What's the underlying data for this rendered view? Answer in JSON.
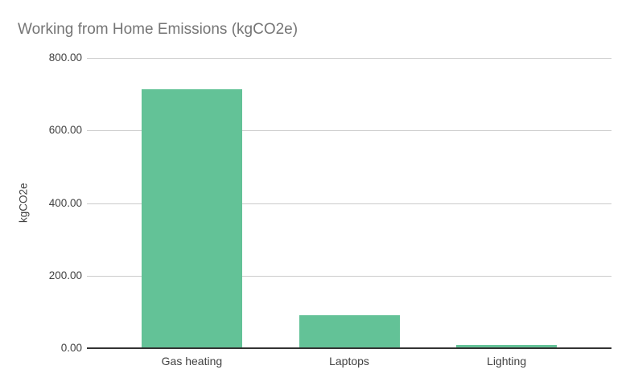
{
  "chart_data": {
    "type": "bar",
    "title": "Working from Home Emissions (kgCO2e)",
    "ylabel": "kgCO2e",
    "xlabel": "",
    "categories": [
      "Gas heating",
      "Laptops",
      "Lighting"
    ],
    "values": [
      714,
      92,
      8
    ],
    "ylim": [
      0,
      800
    ],
    "ytick_labels": [
      "0.00",
      "200.00",
      "400.00",
      "600.00",
      "800.00"
    ],
    "grid": true,
    "legend": "none",
    "colors": {
      "bar": "#63c297",
      "title_text": "#757575",
      "axis_text": "#424242",
      "gridline": "#cccccc",
      "baseline": "#333333",
      "background": "#ffffff"
    }
  }
}
